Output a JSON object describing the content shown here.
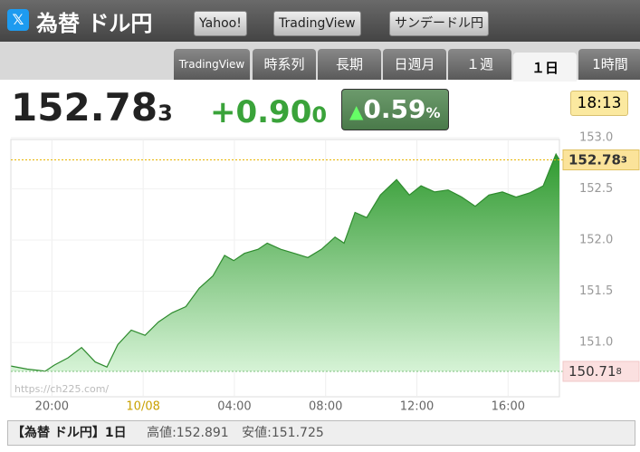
{
  "header": {
    "title": "為替 ドル円",
    "links": [
      "Yahoo!",
      "TradingView",
      "サンデードル円"
    ]
  },
  "tabs": {
    "items": [
      "TradingView",
      "時系列",
      "長期",
      "日週月",
      "１週",
      "１日",
      "1時間"
    ],
    "active": 5
  },
  "quote": {
    "price": "152.78",
    "price_sub": "3",
    "change": "+0.90",
    "change_sub": "0",
    "percent": "0.59",
    "percent_unit": "%",
    "time": "18:13"
  },
  "chart_data": {
    "type": "area",
    "watermark": "https://ch225.com/",
    "x": [
      -5.79,
      -5.08,
      -4.29,
      -3.89,
      -3.29,
      -2.7,
      -2.1,
      -1.59,
      -1.11,
      -0.52,
      0.08,
      0.67,
      1.27,
      1.87,
      2.46,
      3.06,
      3.57,
      3.97,
      4.44,
      5.04,
      5.44,
      6.03,
      6.63,
      7.22,
      7.82,
      8.41,
      8.81,
      9.29,
      9.8,
      10.4,
      11.11,
      11.67,
      12.18,
      12.78,
      13.37,
      13.97,
      14.56,
      15.16,
      15.75,
      16.35,
      16.94,
      17.54,
      17.86,
      18.1,
      18.25
    ],
    "values": [
      150.77,
      150.74,
      150.72,
      150.78,
      150.85,
      150.95,
      150.81,
      150.76,
      150.98,
      151.12,
      151.07,
      151.2,
      151.29,
      151.35,
      151.53,
      151.65,
      151.85,
      151.8,
      151.87,
      151.91,
      151.97,
      151.91,
      151.87,
      151.83,
      151.91,
      152.03,
      151.97,
      152.27,
      152.22,
      152.44,
      152.59,
      152.44,
      152.53,
      152.47,
      152.49,
      152.42,
      152.33,
      152.44,
      152.47,
      152.42,
      152.46,
      152.53,
      152.71,
      152.84,
      152.783
    ],
    "color_up": "#2e8b2e",
    "color_down": "#d42020",
    "xlim": [
      -5.8,
      18.25
    ],
    "xticks": [
      {
        "value": -4,
        "label": "20:00"
      },
      {
        "value": 0,
        "label": "10/08"
      },
      {
        "value": 4,
        "label": "04:00"
      },
      {
        "value": 8,
        "label": "08:00"
      },
      {
        "value": 12,
        "label": "12:00"
      },
      {
        "value": 16,
        "label": "16:00"
      }
    ],
    "ylim": [
      150.47,
      153.0
    ],
    "yticks": [
      {
        "value": 153.0,
        "label": "153.0"
      },
      152.5,
      {
        "value": 152.0,
        "label": "152.0"
      },
      151.5,
      {
        "value": 151.0,
        "label": "151.0"
      }
    ],
    "grid": true,
    "price_marker": {
      "value": 152.783,
      "label": "152.78",
      "sub": "3"
    },
    "base_marker": {
      "value": 150.718,
      "label": "150.71",
      "sub": "8"
    }
  },
  "footer": {
    "name": "【為替 ドル円】1日",
    "high": "高値:152.891",
    "low": "安値:151.725"
  }
}
